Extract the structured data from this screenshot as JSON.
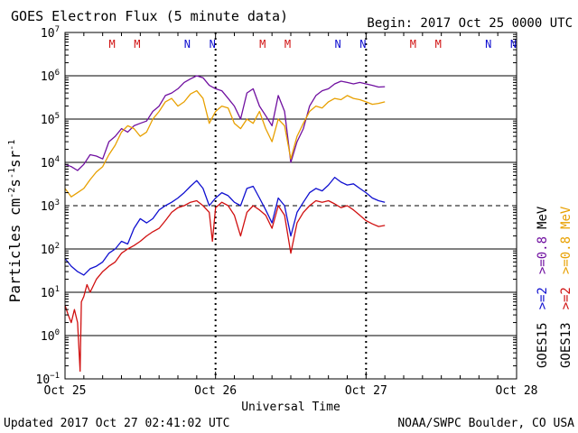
{
  "chart_data": {
    "type": "line",
    "title": "GOES Electron Flux (5 minute data)",
    "begin_label": "Begin: 2017 Oct 25 0000 UTC",
    "xlabel": "Universal Time",
    "ylabel_main": "Particles cm",
    "ylabel_sup1": "-2",
    "ylabel_s": "s",
    "ylabel_sup2": "-1",
    "ylabel_sr": "sr",
    "ylabel_sup3": "-1",
    "x_ticks": [
      "Oct 25",
      "Oct 26",
      "Oct 27",
      "Oct 28"
    ],
    "xlim_hours": [
      0,
      72
    ],
    "y_scale": "log",
    "ylim": [
      0.1,
      10000000
    ],
    "y_tick_exponents": [
      -1,
      0,
      1,
      2,
      3,
      4,
      5,
      6,
      7
    ],
    "y_tick_base": "10",
    "threshold_value": 1000,
    "grid": "horizontal at each decade",
    "midnight_markers": [
      "M",
      "M",
      "M",
      "M",
      "M",
      "M"
    ],
    "noon_markers": [
      "N",
      "N",
      "N",
      "N",
      "N",
      "N"
    ],
    "marker_colors": {
      "M": "#d01010",
      "N": "#1010d0"
    },
    "legend": {
      "outer_label": "GOES13",
      "inner_label": "GOES15",
      "items": [
        {
          "prefix": ">=2",
          "suffix": "",
          "color": "#d01010"
        },
        {
          "prefix": ">=0.8",
          "suffix": "MeV",
          "color": "#e8a000"
        },
        {
          "prefix": ">=2",
          "suffix": "",
          "color": "#1010d0"
        },
        {
          "prefix": ">=0.8",
          "suffix": "MeV",
          "color": "#7010a0"
        }
      ]
    },
    "series": [
      {
        "name": "GOES15 >=0.8 MeV",
        "color": "#7010a0",
        "x": [
          0,
          1,
          2,
          3,
          4,
          5,
          6,
          7,
          8,
          9,
          10,
          11,
          12,
          13,
          14,
          15,
          16,
          17,
          18,
          19,
          20,
          21,
          22,
          23,
          24,
          25,
          26,
          27,
          28,
          29,
          30,
          31,
          32,
          33,
          34,
          35,
          36,
          37,
          38,
          39,
          40,
          41,
          42,
          43,
          44,
          45,
          46,
          47,
          48,
          49,
          50,
          51
        ],
        "y": [
          9000,
          8000,
          6500,
          9000,
          15000,
          14000,
          12000,
          30000,
          40000,
          60000,
          50000,
          70000,
          80000,
          90000,
          150000,
          200000,
          350000,
          400000,
          500000,
          700000,
          850000,
          1000000,
          900000,
          600000,
          500000,
          450000,
          300000,
          200000,
          100000,
          400000,
          500000,
          200000,
          120000,
          70000,
          350000,
          150000,
          10000,
          30000,
          60000,
          200000,
          350000,
          450000,
          500000,
          650000,
          750000,
          700000,
          650000,
          700000,
          650000,
          600000,
          550000,
          560000
        ]
      },
      {
        "name": "GOES13 >=0.8 MeV",
        "color": "#e8a000",
        "x": [
          0,
          1,
          2,
          3,
          4,
          5,
          6,
          7,
          8,
          9,
          10,
          11,
          12,
          13,
          14,
          15,
          16,
          17,
          18,
          19,
          20,
          21,
          22,
          23,
          24,
          25,
          26,
          27,
          28,
          29,
          30,
          31,
          32,
          33,
          34,
          35,
          36,
          37,
          38,
          39,
          40,
          41,
          42,
          43,
          44,
          45,
          46,
          47,
          48,
          49,
          50,
          51
        ],
        "y": [
          2500,
          1600,
          2000,
          2500,
          4000,
          6000,
          8000,
          15000,
          25000,
          50000,
          70000,
          60000,
          40000,
          50000,
          100000,
          150000,
          250000,
          300000,
          200000,
          250000,
          380000,
          450000,
          300000,
          80000,
          150000,
          200000,
          180000,
          80000,
          60000,
          100000,
          80000,
          150000,
          60000,
          30000,
          100000,
          70000,
          12000,
          40000,
          80000,
          150000,
          200000,
          180000,
          250000,
          300000,
          280000,
          350000,
          300000,
          280000,
          250000,
          220000,
          230000,
          250000
        ]
      },
      {
        "name": "GOES15 >=2 MeV",
        "color": "#1010d0",
        "x": [
          0,
          1,
          2,
          3,
          4,
          5,
          6,
          7,
          8,
          9,
          10,
          11,
          12,
          13,
          14,
          15,
          16,
          17,
          18,
          19,
          20,
          21,
          22,
          23,
          24,
          25,
          26,
          27,
          28,
          29,
          30,
          31,
          32,
          33,
          34,
          35,
          36,
          37,
          38,
          39,
          40,
          41,
          42,
          43,
          44,
          45,
          46,
          47,
          48,
          49,
          50,
          51
        ],
        "y": [
          60,
          40,
          30,
          25,
          35,
          40,
          50,
          80,
          100,
          150,
          130,
          300,
          500,
          400,
          500,
          800,
          1000,
          1200,
          1500,
          2000,
          2800,
          3800,
          2500,
          1000,
          1500,
          2000,
          1700,
          1200,
          1000,
          2500,
          2800,
          1500,
          800,
          400,
          1500,
          1000,
          200,
          700,
          1200,
          2000,
          2500,
          2200,
          3000,
          4500,
          3500,
          3000,
          3200,
          2500,
          2000,
          1500,
          1300,
          1200
        ]
      },
      {
        "name": "GOES13 >=2 MeV",
        "color": "#d01010",
        "x": [
          0,
          0.5,
          1,
          1.5,
          2,
          2.4,
          2.6,
          3,
          3.5,
          4,
          5,
          6,
          7,
          8,
          9,
          10,
          11,
          12,
          13,
          14,
          15,
          16,
          17,
          18,
          19,
          20,
          21,
          22,
          23,
          23.5,
          24,
          25,
          26,
          27,
          28,
          29,
          30,
          31,
          32,
          33,
          34,
          35,
          36,
          37,
          38,
          39,
          40,
          41,
          42,
          43,
          44,
          45,
          46,
          47,
          48,
          49,
          50,
          51
        ],
        "y": [
          5,
          3,
          2,
          4,
          2,
          0.15,
          6,
          8,
          15,
          10,
          20,
          30,
          40,
          50,
          80,
          100,
          120,
          150,
          200,
          250,
          300,
          450,
          700,
          900,
          1000,
          1200,
          1300,
          1000,
          700,
          150,
          900,
          1200,
          1000,
          600,
          200,
          700,
          1000,
          800,
          600,
          300,
          1000,
          600,
          80,
          400,
          700,
          1000,
          1300,
          1200,
          1300,
          1100,
          900,
          1000,
          800,
          600,
          450,
          380,
          330,
          350
        ]
      }
    ]
  },
  "footer": {
    "updated": "Updated 2017 Oct 27 02:41:02 UTC",
    "source": "NOAA/SWPC Boulder, CO USA"
  }
}
